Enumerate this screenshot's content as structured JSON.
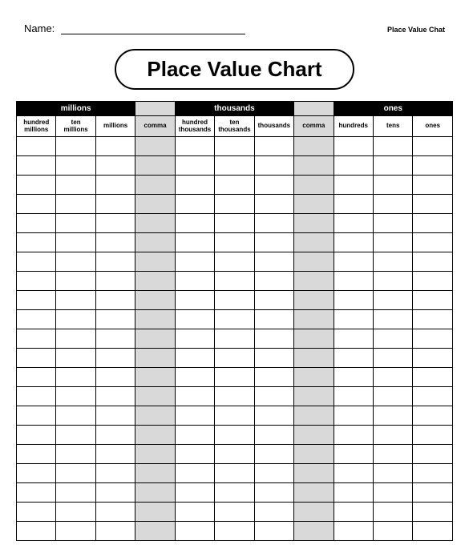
{
  "header": {
    "name_label": "Name:",
    "corner_text": "Place Value Chat"
  },
  "title": "Place Value Chart",
  "table": {
    "type": "table",
    "num_data_rows": 21,
    "group_headers": [
      {
        "label": "millions",
        "span": 3,
        "sep": false
      },
      {
        "label": "",
        "span": 1,
        "sep": true
      },
      {
        "label": "thousands",
        "span": 3,
        "sep": false
      },
      {
        "label": "",
        "span": 1,
        "sep": true
      },
      {
        "label": "ones",
        "span": 3,
        "sep": false
      }
    ],
    "columns": [
      {
        "label": "hundred millions",
        "sep": false
      },
      {
        "label": "ten millions",
        "sep": false
      },
      {
        "label": "millions",
        "sep": false
      },
      {
        "label": "comma",
        "sep": true
      },
      {
        "label": "hundred thousands",
        "sep": false
      },
      {
        "label": "ten thousands",
        "sep": false
      },
      {
        "label": "thousands",
        "sep": false
      },
      {
        "label": "comma",
        "sep": true
      },
      {
        "label": "hundreds",
        "sep": false
      },
      {
        "label": "tens",
        "sep": false
      },
      {
        "label": "ones",
        "sep": false
      }
    ],
    "colors": {
      "group_bg": "#000000",
      "group_fg": "#ffffff",
      "sep_bg": "#d9d9d9",
      "cell_bg": "#ffffff",
      "border": "#000000"
    },
    "fonts": {
      "group_header_size_pt": 10,
      "col_header_size_pt": 8,
      "title_size_pt": 26
    }
  }
}
